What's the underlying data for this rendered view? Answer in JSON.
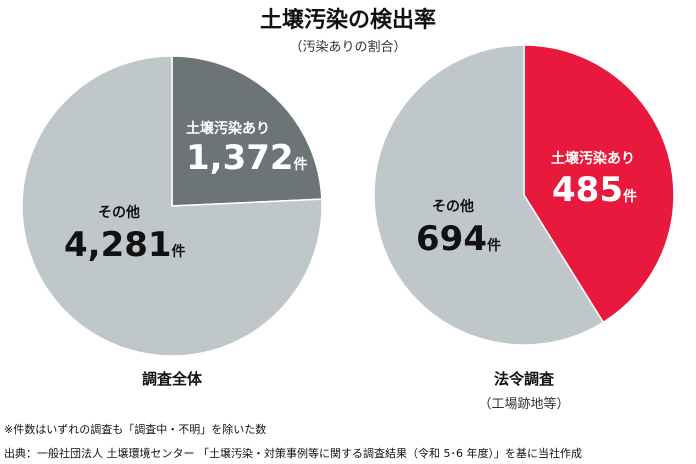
{
  "title": "土壌汚染の検出率",
  "subtitle": "（汚染ありの割合）",
  "chart_data": [
    {
      "type": "pie",
      "caption": "調査全体",
      "start": "12 o'clock, clockwise",
      "slices": [
        {
          "label": "土壌汚染あり",
          "value": 1372,
          "display": "1,372",
          "unit": "件",
          "color": "#6d7478"
        },
        {
          "label": "その他",
          "value": 4281,
          "display": "4,281",
          "unit": "件",
          "color": "#c0c7cb"
        }
      ]
    },
    {
      "type": "pie",
      "caption": "法令調査",
      "caption_sub": "（工場跡地等）",
      "start": "12 o'clock, clockwise",
      "slices": [
        {
          "label": "土壌汚染あり",
          "value": 485,
          "display": "485",
          "unit": "件",
          "color": "#e8193c"
        },
        {
          "label": "その他",
          "value": 694,
          "display": "694",
          "unit": "件",
          "color": "#c0c7cb"
        }
      ]
    }
  ],
  "notes": [
    "※件数はいずれの調査も「調査中・不明」を除いた数",
    "出典：一般社団法人 土壌環境センター 「土壌汚染・対策事例等に関する調査結果（令和 5･6 年度）」を基に当社作成"
  ]
}
